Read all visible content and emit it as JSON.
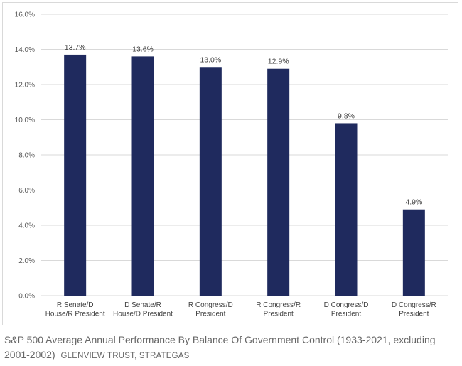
{
  "chart_data": {
    "type": "bar",
    "categories": [
      [
        "R Senate/D",
        "House/R President"
      ],
      [
        "D Senate/R",
        "House/D President"
      ],
      [
        "R Congress/D",
        "President"
      ],
      [
        "R Congress/R",
        "President"
      ],
      [
        "D Congress/D",
        "President"
      ],
      [
        "D Congress/R",
        "President"
      ]
    ],
    "values": [
      13.7,
      13.6,
      13.0,
      12.9,
      9.8,
      4.9
    ],
    "data_labels": [
      "13.7%",
      "13.6%",
      "13.0%",
      "12.9%",
      "9.8%",
      "4.9%"
    ],
    "y_ticks": [
      "0.0%",
      "2.0%",
      "4.0%",
      "6.0%",
      "8.0%",
      "10.0%",
      "12.0%",
      "14.0%",
      "16.0%"
    ],
    "ylim": [
      0,
      16
    ],
    "ytick_step": 2,
    "grid": true,
    "bar_color": "#1f2a5e",
    "grid_color": "#d9d9d9",
    "title": "",
    "xlabel": "",
    "ylabel": ""
  },
  "caption": {
    "text": "S&P 500 Average Annual Performance By Balance Of Government Control (1933-2021, excluding 2001-2002)",
    "source": "GLENVIEW TRUST, STRATEGAS"
  }
}
